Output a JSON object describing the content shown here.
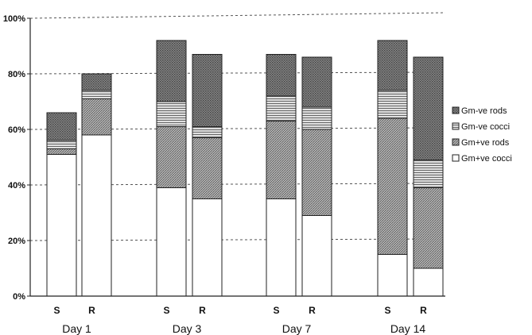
{
  "chart_data": {
    "type": "bar",
    "stacked": true,
    "title": "",
    "xlabel": "",
    "ylabel": "",
    "ylim": [
      0,
      100
    ],
    "yticks": [
      "0%",
      "20%",
      "40%",
      "60%",
      "80%",
      "100%"
    ],
    "grid": "dashed horizontal",
    "legend_position": "right",
    "groups": [
      "Day 1",
      "Day 3",
      "Day 7",
      "Day 14"
    ],
    "categories": [
      "S",
      "R",
      "S",
      "R",
      "S",
      "R",
      "S",
      "R"
    ],
    "series": [
      {
        "name": "Gm+ve cocci",
        "values": [
          51,
          58,
          39,
          35,
          35,
          29,
          15,
          10
        ],
        "color": "#ffffff"
      },
      {
        "name": "Gm+ve rods",
        "values": [
          2,
          13,
          22,
          22,
          28,
          31,
          49,
          29
        ],
        "color": "#9a9a9a"
      },
      {
        "name": "Gm-ve cocci",
        "values": [
          3,
          3,
          9,
          4,
          9,
          8,
          10,
          10
        ],
        "color": "#c8c8c8"
      },
      {
        "name": "Gm-ve rods",
        "values": [
          10,
          6,
          22,
          26,
          15,
          18,
          18,
          37
        ],
        "color": "#6a6a6a"
      }
    ]
  }
}
